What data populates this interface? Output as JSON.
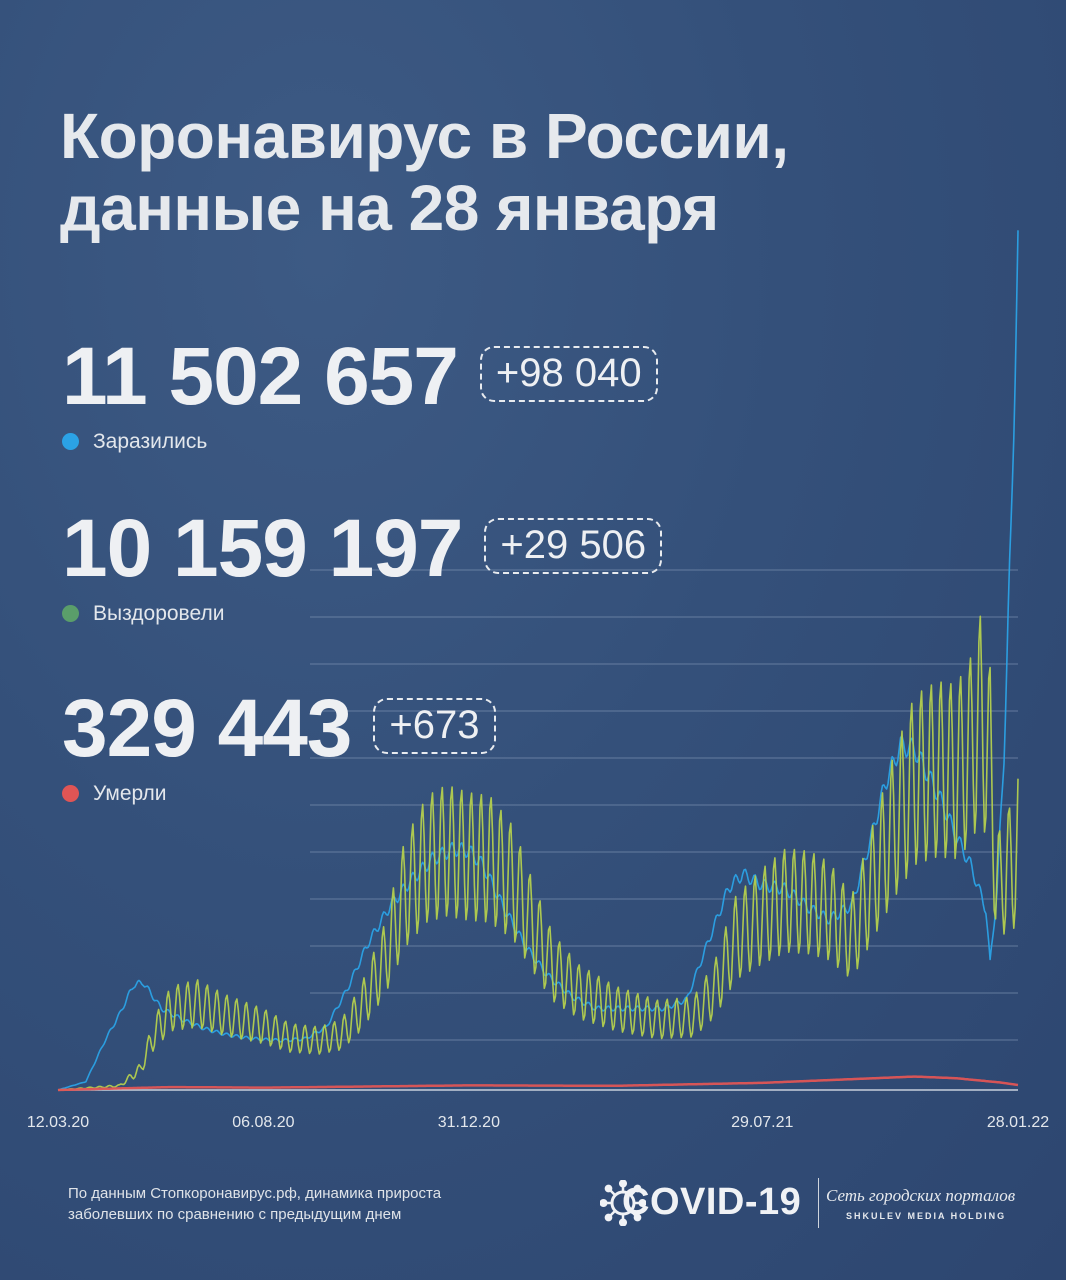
{
  "title": {
    "line1": "Коронавирус в России,",
    "line2": "данные на 28 января"
  },
  "stats": {
    "infected": {
      "value": "11 502 657",
      "delta": "+98 040",
      "label": "Заразились",
      "color": "#2ba2e6"
    },
    "recovered": {
      "value": "10 159 197",
      "delta": "+29 506",
      "label": "Выздоровели",
      "color": "#5a9e6a"
    },
    "died": {
      "value": "329 443",
      "delta": "+673",
      "label": "Умерли",
      "color": "#e05555"
    }
  },
  "chart_data": {
    "type": "line",
    "title": "",
    "xlabel": "",
    "ylabel": "",
    "x_tick_labels": [
      "12.03.20",
      "06.08.20",
      "31.12.20",
      "29.07.21",
      "28.01.22"
    ],
    "x_range": [
      "2020-03-12",
      "2022-01-28"
    ],
    "grid": true,
    "note": "daily increase relative to previous day (y values in relative units 0-100, axis unlabeled)",
    "series": [
      {
        "color": "#2ba2e6",
        "points": [
          [
            "2020-03-12",
            0
          ],
          [
            "2020-04-01",
            1
          ],
          [
            "2020-04-15",
            6
          ],
          [
            "2020-04-25",
            9
          ],
          [
            "2020-05-05",
            12.5
          ],
          [
            "2020-05-12",
            12.8
          ],
          [
            "2020-05-25",
            9.7
          ],
          [
            "2020-06-10",
            8.3
          ],
          [
            "2020-06-25",
            7.3
          ],
          [
            "2020-07-10",
            6.6
          ],
          [
            "2020-07-25",
            6.2
          ],
          [
            "2020-08-06",
            6.0
          ],
          [
            "2020-08-20",
            5.9
          ],
          [
            "2020-09-05",
            6.1
          ],
          [
            "2020-09-20",
            7.5
          ],
          [
            "2020-10-05",
            12
          ],
          [
            "2020-10-20",
            17.5
          ],
          [
            "2020-11-05",
            22
          ],
          [
            "2020-11-20",
            25
          ],
          [
            "2020-12-05",
            27.5
          ],
          [
            "2020-12-20",
            28.7
          ],
          [
            "2020-12-31",
            28.5
          ],
          [
            "2021-01-10",
            26.8
          ],
          [
            "2021-01-25",
            21.7
          ],
          [
            "2021-02-10",
            17
          ],
          [
            "2021-02-25",
            13.7
          ],
          [
            "2021-03-15",
            11.1
          ],
          [
            "2021-04-01",
            9.7
          ],
          [
            "2021-04-15",
            9.7
          ],
          [
            "2021-05-01",
            9.7
          ],
          [
            "2021-05-20",
            9.7
          ],
          [
            "2021-06-05",
            10.8
          ],
          [
            "2021-06-20",
            17.5
          ],
          [
            "2021-07-05",
            24.1
          ],
          [
            "2021-07-15",
            25.7
          ],
          [
            "2021-07-29",
            24.4
          ],
          [
            "2021-08-15",
            23.9
          ],
          [
            "2021-09-01",
            21.6
          ],
          [
            "2021-09-15",
            20.3
          ],
          [
            "2021-10-01",
            22
          ],
          [
            "2021-10-15",
            30.1
          ],
          [
            "2021-10-25",
            36.5
          ],
          [
            "2021-11-05",
            41
          ],
          [
            "2021-11-15",
            40.6
          ],
          [
            "2021-11-25",
            37.4
          ],
          [
            "2021-12-05",
            34.1
          ],
          [
            "2021-12-15",
            30.1
          ],
          [
            "2021-12-25",
            26.8
          ],
          [
            "2022-01-05",
            21.5
          ],
          [
            "2022-01-08",
            15.1
          ],
          [
            "2022-01-13",
            23.6
          ],
          [
            "2022-01-18",
            40
          ],
          [
            "2022-01-23",
            66.6
          ],
          [
            "2022-01-28",
            100
          ]
        ]
      },
      {
        "color": "#b4cf4e",
        "points": [
          [
            "2020-03-12",
            0
          ],
          [
            "2020-04-25",
            0.5
          ],
          [
            "2020-05-10",
            2.5
          ],
          [
            "2020-05-20",
            6.8
          ],
          [
            "2020-06-01",
            9.7
          ],
          [
            "2020-06-20",
            10.3
          ],
          [
            "2020-07-10",
            8.9
          ],
          [
            "2020-08-06",
            7.6
          ],
          [
            "2020-08-25",
            6.2
          ],
          [
            "2020-09-15",
            5.9
          ],
          [
            "2020-10-01",
            6.6
          ],
          [
            "2020-10-15",
            9.8
          ],
          [
            "2020-11-01",
            15.6
          ],
          [
            "2020-11-15",
            23.3
          ],
          [
            "2020-12-01",
            27.5
          ],
          [
            "2020-12-15",
            28.5
          ],
          [
            "2020-12-31",
            27.8
          ],
          [
            "2021-01-15",
            27.5
          ],
          [
            "2021-02-01",
            24.6
          ],
          [
            "2021-02-15",
            19.4
          ],
          [
            "2021-03-01",
            14.6
          ],
          [
            "2021-03-20",
            11.7
          ],
          [
            "2021-04-15",
            9.7
          ],
          [
            "2021-05-15",
            8.4
          ],
          [
            "2021-06-10",
            8.7
          ],
          [
            "2021-06-25",
            12
          ],
          [
            "2021-07-10",
            18.1
          ],
          [
            "2021-07-29",
            20.7
          ],
          [
            "2021-08-15",
            22.6
          ],
          [
            "2021-09-01",
            22.3
          ],
          [
            "2021-09-15",
            21.3
          ],
          [
            "2021-10-01",
            18.1
          ],
          [
            "2021-10-15",
            24.3
          ],
          [
            "2021-11-01",
            31.7
          ],
          [
            "2021-11-15",
            36.9
          ],
          [
            "2021-12-01",
            38.2
          ],
          [
            "2021-12-15",
            37.9
          ],
          [
            "2021-12-25",
            40.4
          ],
          [
            "2022-01-01",
            44.3
          ],
          [
            "2022-01-08",
            39.5
          ],
          [
            "2022-01-12",
            26.1
          ],
          [
            "2022-01-16",
            23.6
          ],
          [
            "2022-01-20",
            27.5
          ],
          [
            "2022-01-24",
            25.2
          ],
          [
            "2022-01-28",
            30.4
          ]
        ]
      },
      {
        "color": "#e05555",
        "points": [
          [
            "2020-03-12",
            0
          ],
          [
            "2020-06-01",
            0.35
          ],
          [
            "2020-08-06",
            0.28
          ],
          [
            "2020-12-31",
            0.55
          ],
          [
            "2021-04-15",
            0.5
          ],
          [
            "2021-07-29",
            0.85
          ],
          [
            "2021-11-15",
            1.6
          ],
          [
            "2021-12-15",
            1.4
          ],
          [
            "2022-01-15",
            0.9
          ],
          [
            "2022-01-28",
            0.6
          ]
        ]
      }
    ]
  },
  "footer": {
    "note_line1": "По данным Стопкоронавирус.рф, динамика прироста",
    "note_line2": "заболевших по сравнению с предыдущим днем",
    "brand": "COVID-19",
    "network": "Сеть городских порталов",
    "holding": "SHKULEV MEDIA HOLDING"
  },
  "colors": {
    "background": "#34507a",
    "gridline": "#8ea2bf",
    "infected": "#2ba2e6",
    "recovered": "#b4cf4e",
    "died": "#e05555"
  }
}
